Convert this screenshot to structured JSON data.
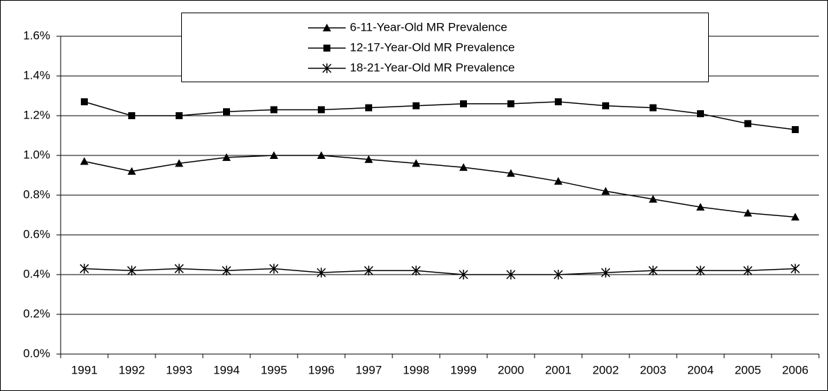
{
  "chart_data": {
    "type": "line",
    "categories": [
      "1991",
      "1992",
      "1993",
      "1994",
      "1995",
      "1996",
      "1997",
      "1998",
      "1999",
      "2000",
      "2001",
      "2002",
      "2003",
      "2004",
      "2005",
      "2006"
    ],
    "series": [
      {
        "name": "6-11-Year-Old MR Prevalence",
        "color": "#000000",
        "marker": "triangle",
        "values": [
          0.97,
          0.92,
          0.96,
          0.99,
          1.0,
          1.0,
          0.98,
          0.96,
          0.94,
          0.91,
          0.87,
          0.82,
          0.78,
          0.74,
          0.71,
          0.69
        ]
      },
      {
        "name": "12-17-Year-Old MR Prevalence",
        "color": "#000000",
        "marker": "square",
        "values": [
          1.27,
          1.2,
          1.2,
          1.22,
          1.23,
          1.23,
          1.24,
          1.25,
          1.26,
          1.26,
          1.27,
          1.25,
          1.24,
          1.21,
          1.16,
          1.13
        ]
      },
      {
        "name": "18-21-Year-Old MR Prevalence",
        "color": "#000000",
        "marker": "star",
        "values": [
          0.43,
          0.42,
          0.43,
          0.42,
          0.43,
          0.41,
          0.42,
          0.42,
          0.4,
          0.4,
          0.4,
          0.41,
          0.42,
          0.42,
          0.42,
          0.43
        ]
      }
    ],
    "ylim": [
      0,
      1.6
    ],
    "yticks": [
      {
        "value": 0,
        "label": "0.0%"
      },
      {
        "value": 0.2,
        "label": "0.2%"
      },
      {
        "value": 0.4,
        "label": "0.4%"
      },
      {
        "value": 0.6,
        "label": "0.6%"
      },
      {
        "value": 0.8,
        "label": "0.8%"
      },
      {
        "value": 1.0,
        "label": "1.0%"
      },
      {
        "value": 1.2,
        "label": "1.2%"
      },
      {
        "value": 1.4,
        "label": "1.4%"
      },
      {
        "value": 1.6,
        "label": "1.6%"
      }
    ],
    "grid": true,
    "legend": "top"
  }
}
